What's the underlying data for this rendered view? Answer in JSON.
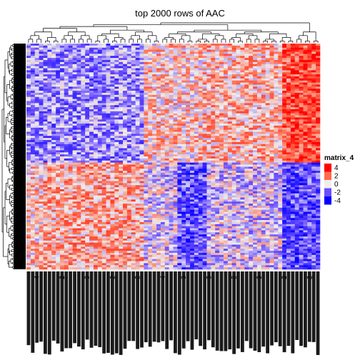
{
  "title": "top 2000 rows of AAC",
  "chart_data": {
    "type": "heatmap",
    "title": "top 2000 rows of AAC",
    "rows": 2000,
    "row_dendrogram": true,
    "column_dendrogram": true,
    "color_scale": {
      "name": "matrix_4",
      "breaks": [
        4,
        2,
        0,
        -2,
        -4
      ],
      "colors": [
        "#ff0000",
        "#ff6a4d",
        "#eeeeee",
        "#6a4dff",
        "#0000ff"
      ]
    },
    "legend": {
      "title": "matrix_4",
      "position": "right",
      "ticks": [
        "4",
        "2",
        "0",
        "-2",
        "-4"
      ]
    },
    "column_labels_visible_fragments": [
      "4",
      "2",
      "3",
      "2",
      "2",
      "4",
      "3",
      "3",
      "2",
      "3",
      "2",
      "2"
    ]
  }
}
